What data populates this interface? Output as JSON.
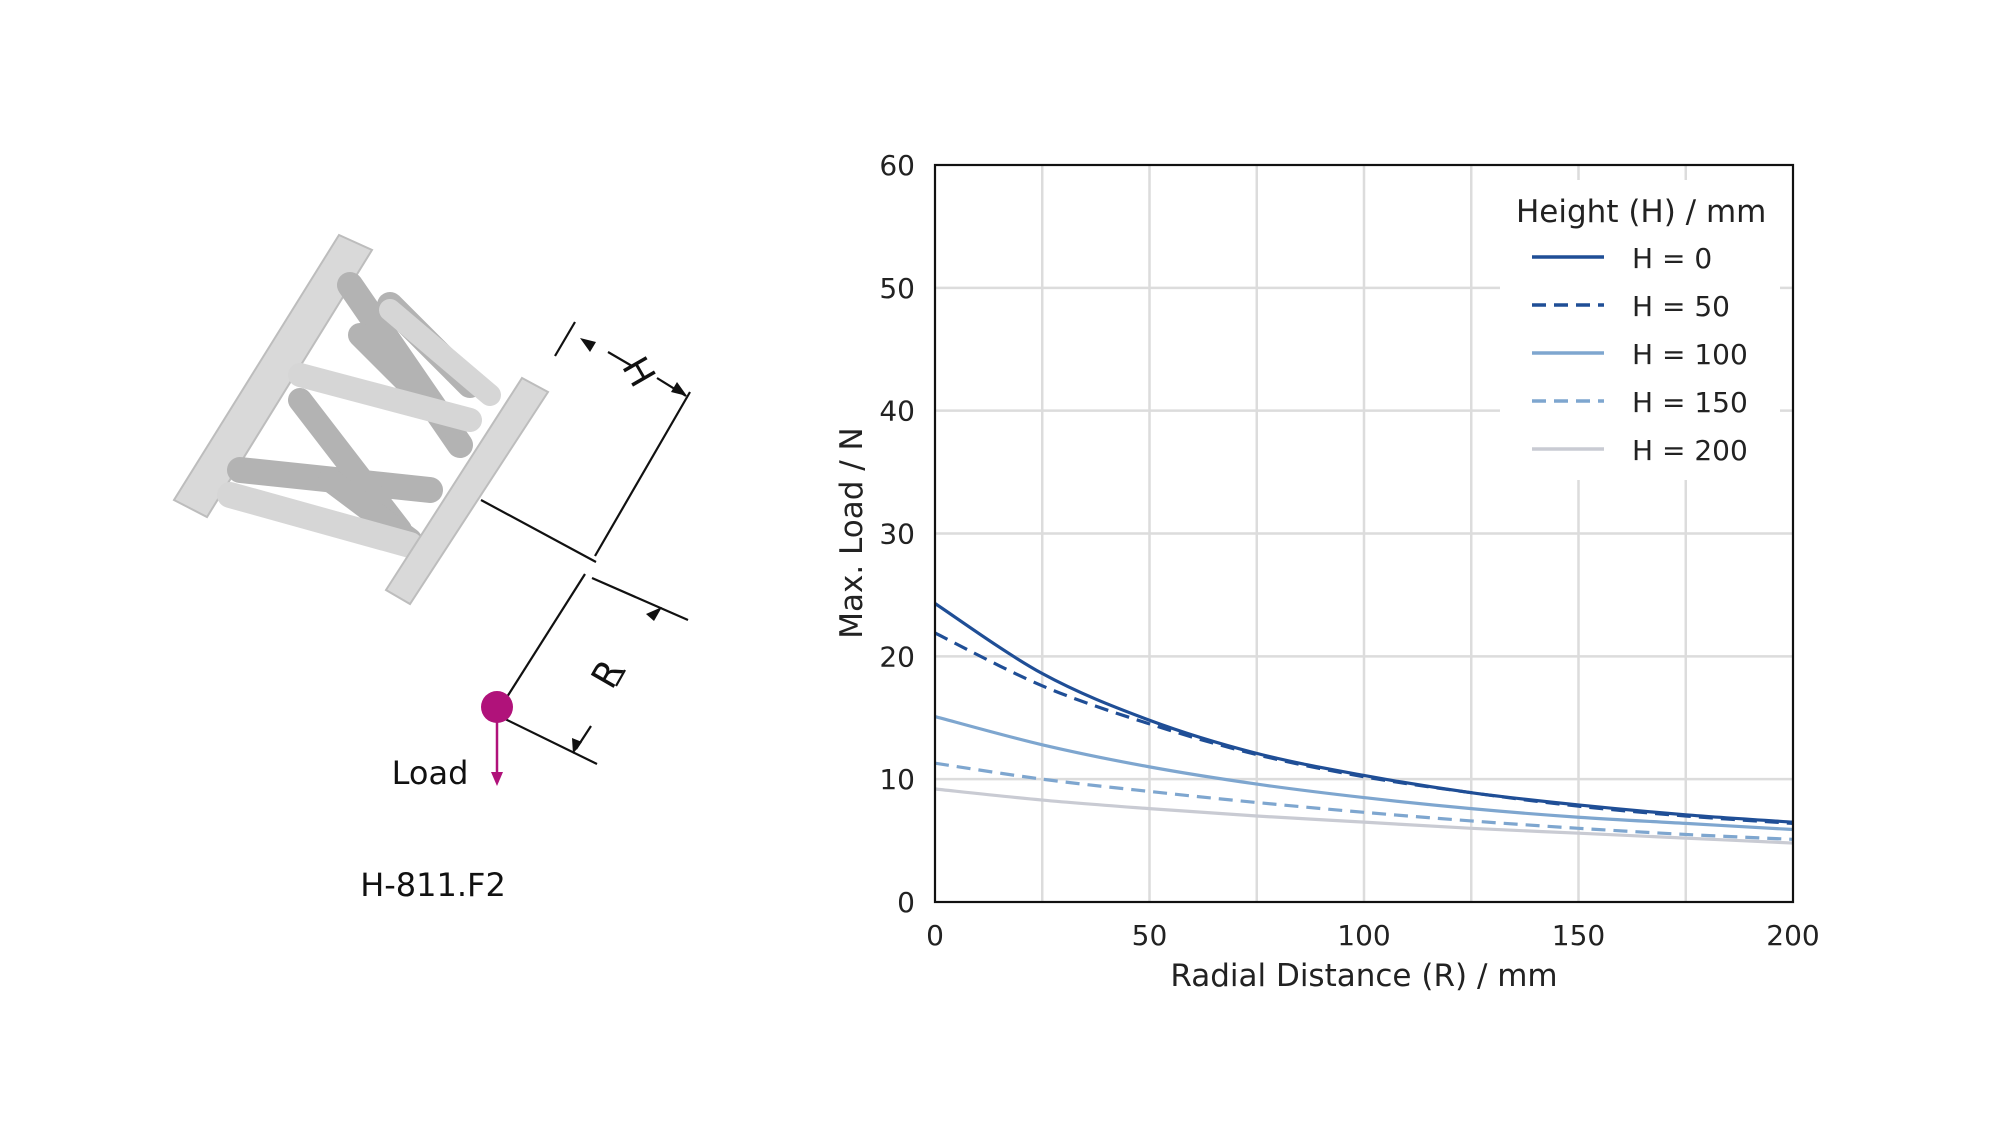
{
  "diagram": {
    "model_label": "H-811.F2",
    "load_label": "Load",
    "dim_h_label": "H",
    "dim_r_label": "R",
    "load_color": "#b0127a",
    "hexapod_color": "#d9d9d9",
    "strut_color": "#b3b3b3"
  },
  "chart_data": {
    "type": "line",
    "xlabel": "Radial Distance (R) / mm",
    "ylabel": "Max. Load / N",
    "xlim": [
      0,
      200
    ],
    "ylim": [
      0,
      60
    ],
    "xticks": [
      0,
      50,
      100,
      150,
      200
    ],
    "yticks": [
      0,
      10,
      20,
      30,
      40,
      50,
      60
    ],
    "grid": true,
    "legend_title": "Height (H) / mm",
    "legend_position": "top-right",
    "x": [
      0,
      25,
      50,
      75,
      100,
      125,
      150,
      175,
      200
    ],
    "series": [
      {
        "name": "H = 0",
        "color": "#1f4e96",
        "dash": "solid",
        "values": [
          24.3,
          18.6,
          14.8,
          12.1,
          10.3,
          8.9,
          7.9,
          7.1,
          6.5
        ]
      },
      {
        "name": "H = 50",
        "color": "#1f4e96",
        "dash": "dashed",
        "values": [
          21.9,
          17.6,
          14.5,
          12.0,
          10.2,
          8.9,
          7.8,
          7.0,
          6.4
        ]
      },
      {
        "name": "H = 100",
        "color": "#7ea6cf",
        "dash": "solid",
        "values": [
          15.1,
          12.8,
          11.0,
          9.6,
          8.5,
          7.6,
          6.9,
          6.4,
          5.9
        ]
      },
      {
        "name": "H = 150",
        "color": "#7ea6cf",
        "dash": "dashed",
        "values": [
          11.3,
          10.0,
          9.0,
          8.1,
          7.3,
          6.6,
          6.0,
          5.5,
          5.1
        ]
      },
      {
        "name": "H = 200",
        "color": "#c9cbd3",
        "dash": "solid",
        "values": [
          9.2,
          8.3,
          7.6,
          7.0,
          6.5,
          6.0,
          5.6,
          5.2,
          4.8
        ]
      }
    ]
  }
}
